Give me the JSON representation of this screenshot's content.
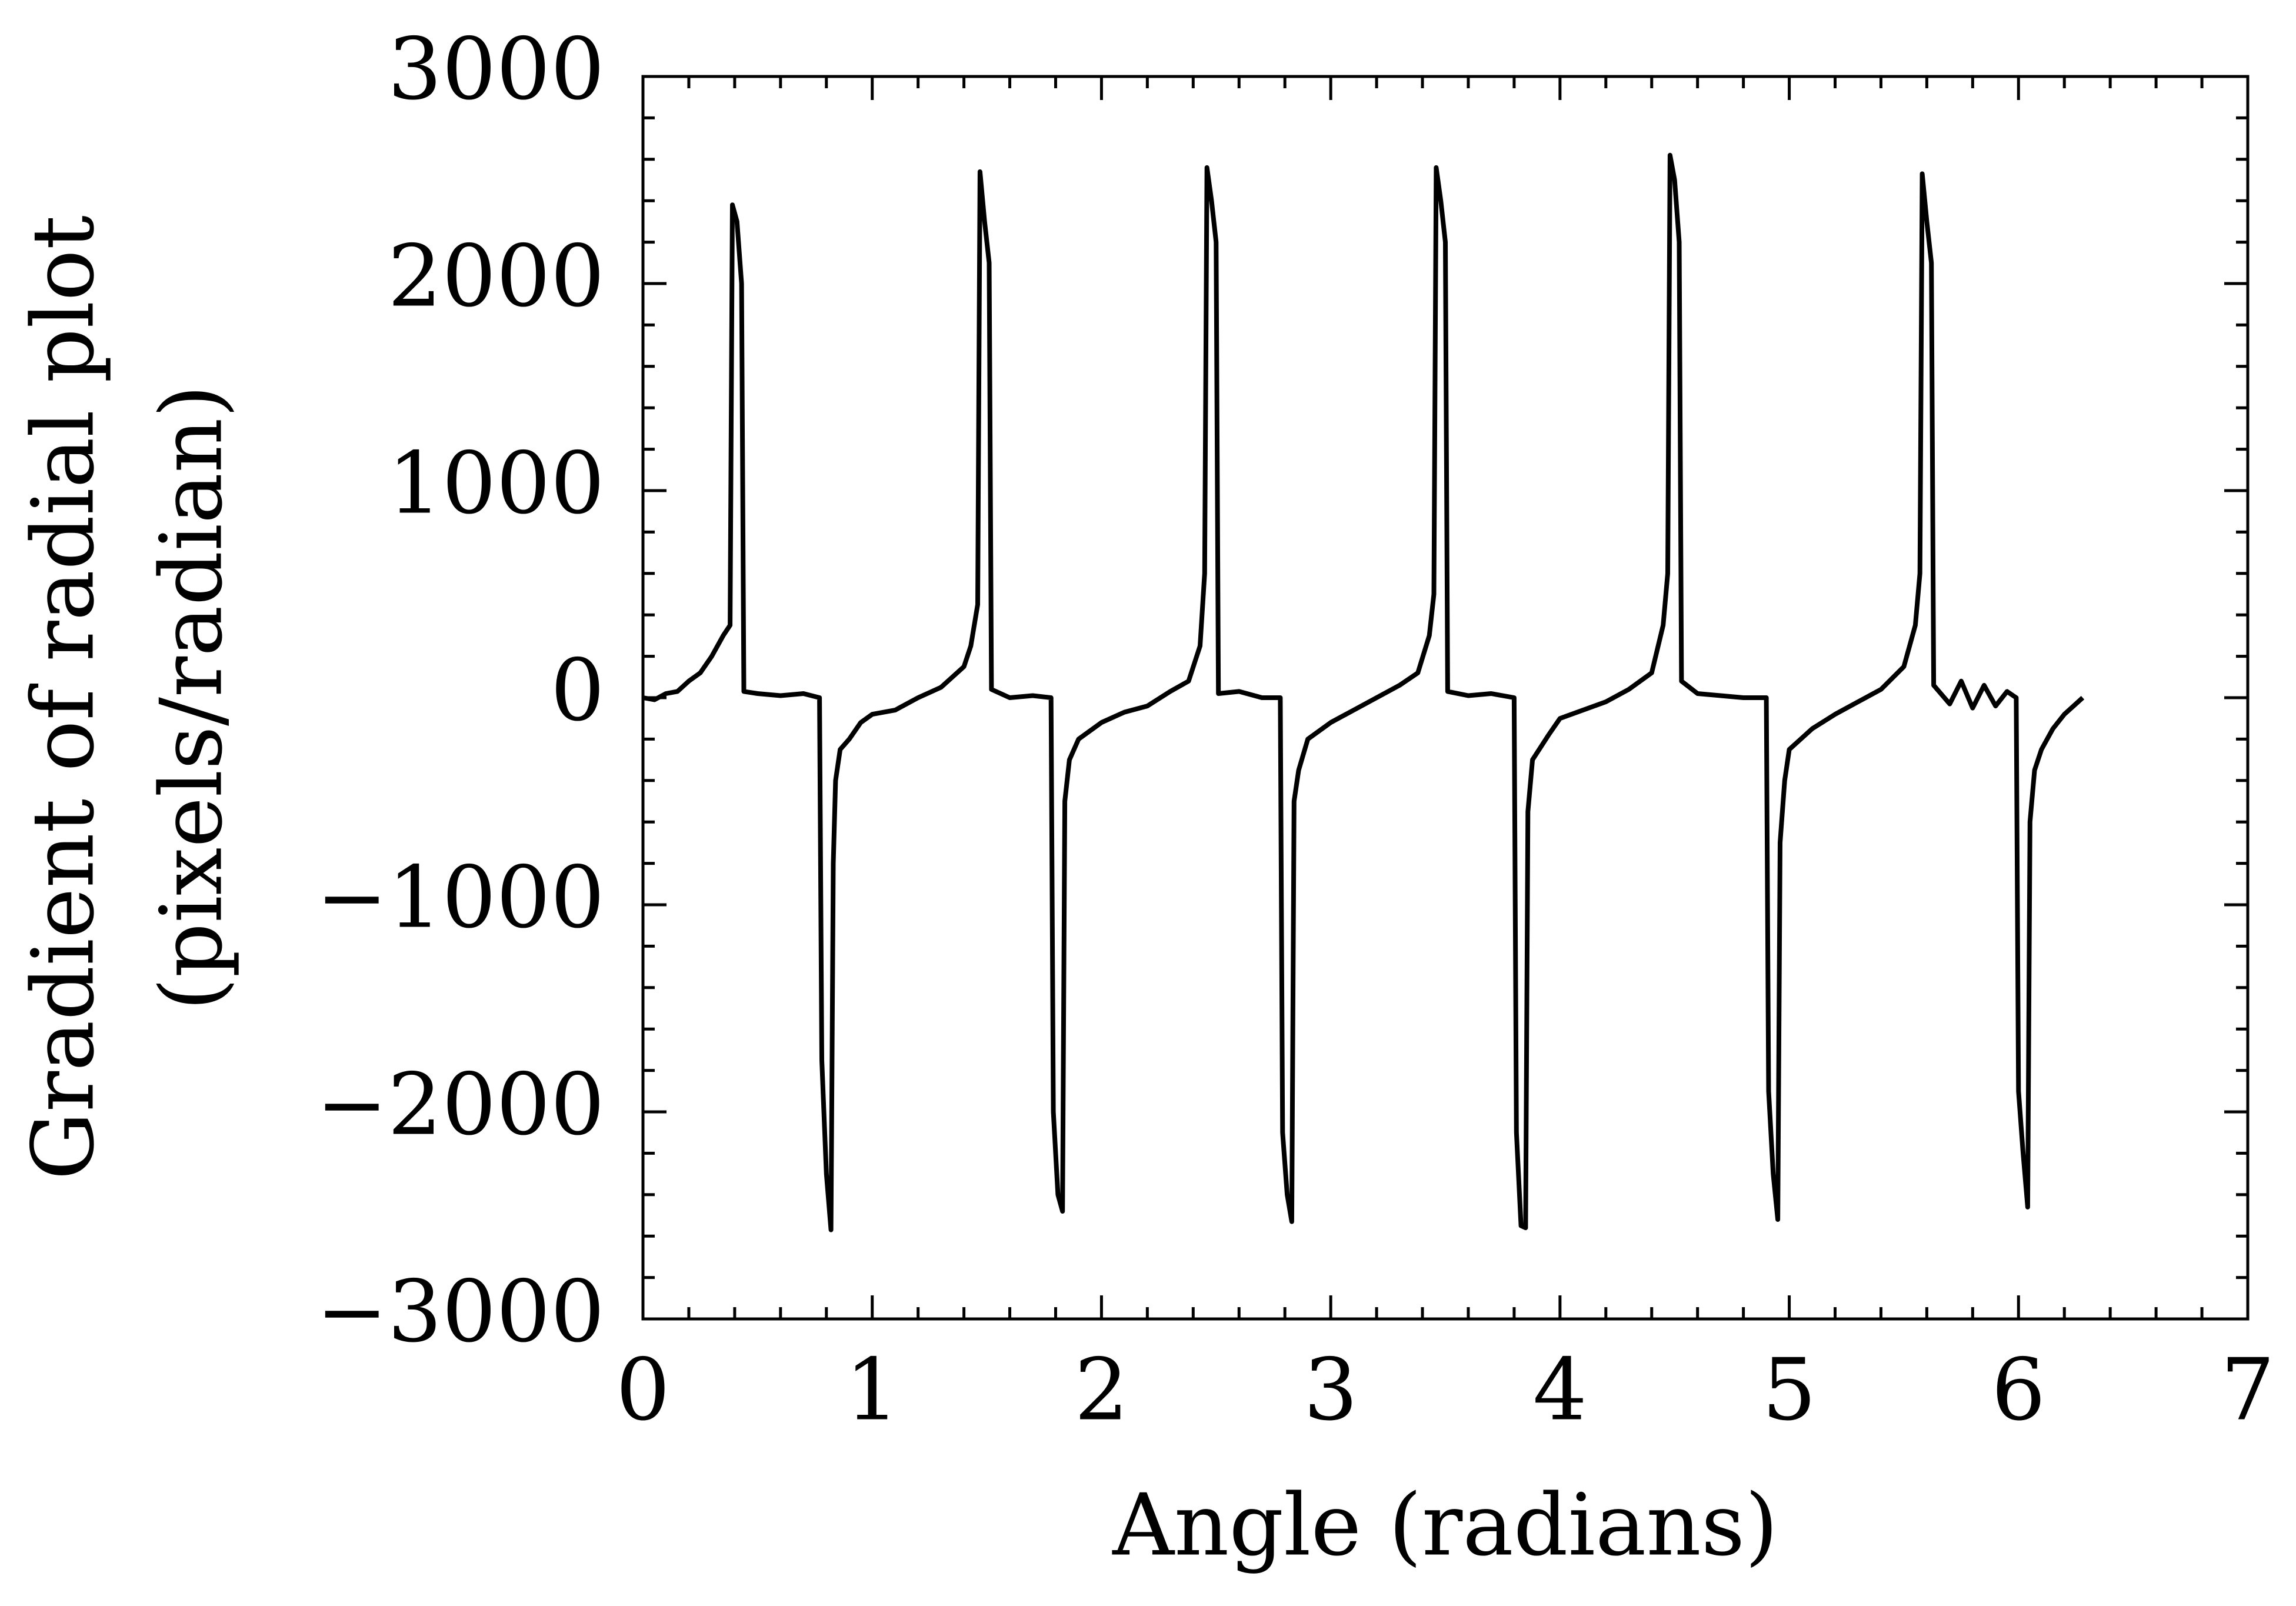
{
  "chart_data": {
    "type": "line",
    "xlabel": "Angle (radians)",
    "ylabel": [
      "Gradient of radial plot",
      "(pixels/radian)"
    ],
    "x": [
      0,
      0.05,
      0.1,
      0.15,
      0.2,
      0.25,
      0.3,
      0.35,
      0.38,
      0.39,
      0.41,
      0.43,
      0.44,
      0.5,
      0.6,
      0.7,
      0.77,
      0.78,
      0.8,
      0.82,
      0.83,
      0.84,
      0.86,
      0.9,
      0.95,
      1.0,
      1.1,
      1.2,
      1.3,
      1.35,
      1.4,
      1.43,
      1.46,
      1.47,
      1.49,
      1.51,
      1.52,
      1.6,
      1.7,
      1.78,
      1.79,
      1.81,
      1.83,
      1.84,
      1.86,
      1.9,
      2.0,
      2.1,
      2.2,
      2.3,
      2.38,
      2.43,
      2.45,
      2.46,
      2.48,
      2.5,
      2.51,
      2.6,
      2.7,
      2.78,
      2.79,
      2.81,
      2.83,
      2.84,
      2.86,
      2.9,
      3.0,
      3.1,
      3.2,
      3.3,
      3.38,
      3.43,
      3.45,
      3.46,
      3.48,
      3.5,
      3.51,
      3.6,
      3.7,
      3.8,
      3.81,
      3.83,
      3.85,
      3.86,
      3.88,
      3.95,
      4.0,
      4.1,
      4.2,
      4.3,
      4.4,
      4.45,
      4.47,
      4.48,
      4.5,
      4.52,
      4.53,
      4.6,
      4.7,
      4.8,
      4.9,
      4.91,
      4.93,
      4.95,
      4.96,
      4.98,
      5.0,
      5.1,
      5.2,
      5.3,
      5.4,
      5.5,
      5.55,
      5.57,
      5.58,
      5.6,
      5.62,
      5.63,
      5.7,
      5.75,
      5.8,
      5.85,
      5.9,
      5.95,
      5.99,
      6.0,
      6.02,
      6.04,
      6.05,
      6.07,
      6.1,
      6.15,
      6.2,
      6.25,
      6.28
    ],
    "values": [
      0,
      -10,
      20,
      30,
      80,
      120,
      200,
      300,
      350,
      2380,
      2300,
      2000,
      30,
      20,
      10,
      20,
      0,
      -1750,
      -2300,
      -2570,
      -800,
      -400,
      -250,
      -200,
      -120,
      -80,
      -60,
      0,
      50,
      100,
      150,
      250,
      450,
      2540,
      2300,
      2100,
      40,
      0,
      10,
      0,
      -2000,
      -2400,
      -2480,
      -500,
      -300,
      -200,
      -120,
      -70,
      -40,
      30,
      80,
      250,
      600,
      2560,
      2400,
      2200,
      20,
      30,
      0,
      0,
      -2100,
      -2400,
      -2530,
      -500,
      -350,
      -200,
      -120,
      -60,
      0,
      60,
      120,
      300,
      500,
      2560,
      2400,
      2200,
      30,
      10,
      20,
      0,
      -2100,
      -2550,
      -2560,
      -550,
      -300,
      -180,
      -100,
      -60,
      -20,
      40,
      120,
      350,
      600,
      2620,
      2500,
      2200,
      80,
      20,
      10,
      0,
      0,
      -1900,
      -2300,
      -2520,
      -700,
      -400,
      -250,
      -150,
      -80,
      -20,
      40,
      150,
      350,
      600,
      2530,
      2300,
      2100,
      60,
      -30,
      80,
      -50,
      60,
      -40,
      30,
      0,
      -1900,
      -2200,
      -2460,
      -600,
      -350,
      -250,
      -150,
      -80,
      -30,
      0
    ],
    "color": "#000000",
    "xlim": [
      0,
      7
    ],
    "xticks": [
      0,
      1,
      2,
      3,
      4,
      5,
      6,
      7
    ],
    "ylim": [
      -3000,
      3000
    ],
    "yticks": [
      {
        "value": -3000,
        "label": "−3000"
      },
      {
        "value": -2000,
        "label": "−2000"
      },
      {
        "value": -1000,
        "label": "−1000"
      },
      0,
      1000,
      2000,
      3000
    ],
    "minor_ticks": true
  }
}
